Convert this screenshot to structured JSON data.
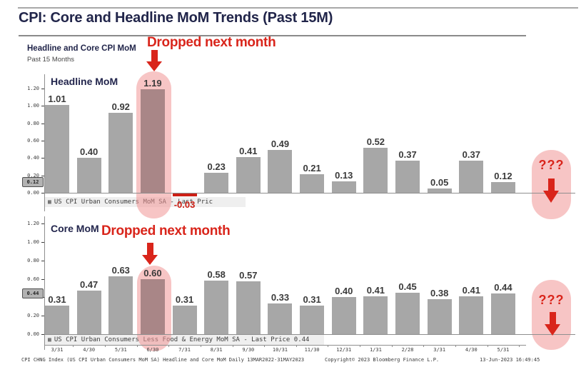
{
  "header": {
    "title": "CPI: Core and Headline MoM Trends (Past 15M)"
  },
  "section_header": {
    "title": "Headline and Core CPI MoM",
    "subtitle": "Past 15 Months"
  },
  "annotations": {
    "dropped_top": "Dropped next month",
    "dropped_bottom": "Dropped next month",
    "unknown_top": "???",
    "unknown_bottom": "???"
  },
  "icons": {
    "legend_grid": "▦"
  },
  "colors": {
    "bar": "#a7a7a7",
    "highlight_bar": "#a98687",
    "negative": "#cc1f15",
    "annotation_red": "#d9251b",
    "navy": "#21254a",
    "capsule_pink": "rgba(240,150,150,0.55)"
  },
  "chart_data": [
    {
      "type": "bar",
      "title": "Headline MoM",
      "categories": [
        "3/31",
        "4/30",
        "5/31",
        "6/30",
        "7/31",
        "8/31",
        "9/30",
        "10/31",
        "11/30",
        "12/31",
        "1/31",
        "2/28",
        "3/31",
        "4/30",
        "5/31"
      ],
      "values": [
        1.01,
        0.4,
        0.92,
        1.19,
        -0.03,
        0.23,
        0.41,
        0.49,
        0.21,
        0.13,
        0.52,
        0.37,
        0.05,
        0.37,
        0.12
      ],
      "highlight_index": 3,
      "ylim": [
        0,
        1.2
      ],
      "yticks": [
        "1.20",
        "1.00",
        "0.80",
        "0.60",
        "0.40",
        "0.20",
        "0.00"
      ],
      "last_price_tag": "0.12",
      "legend": "US CPI Urban Consumers MoM SA - Last Pric",
      "future_label": "???",
      "grid": "off",
      "legend_position": "bottom-left"
    },
    {
      "type": "bar",
      "title": "Core MoM",
      "categories": [
        "3/31",
        "4/30",
        "5/31",
        "6/30",
        "7/31",
        "8/31",
        "9/30",
        "10/31",
        "11/30",
        "12/31",
        "1/31",
        "2/28",
        "3/31",
        "4/30",
        "5/31"
      ],
      "values": [
        0.31,
        0.47,
        0.63,
        0.6,
        0.31,
        0.58,
        0.57,
        0.33,
        0.31,
        0.4,
        0.41,
        0.45,
        0.38,
        0.41,
        0.44
      ],
      "highlight_index": 3,
      "ylim": [
        0,
        1.2
      ],
      "yticks": [
        "1.20",
        "1.00",
        "0.80",
        "0.60",
        "0.40",
        "0.20",
        "0.00"
      ],
      "last_price_tag": "0.44",
      "legend": "US CPI Urban Consumers Less Food & Energy MoM SA - Last Price 0.44",
      "future_label": "???",
      "grid": "off",
      "legend_position": "bottom-left"
    }
  ],
  "footer": {
    "left": "CPI CHNG Index (US CPI Urban Consumers MoM SA) Headline and Core MoM  Daily 13MAR2022-31MAY2023",
    "center": "Copyright© 2023 Bloomberg Finance L.P.",
    "right": "13-Jun-2023 16:49:45"
  }
}
